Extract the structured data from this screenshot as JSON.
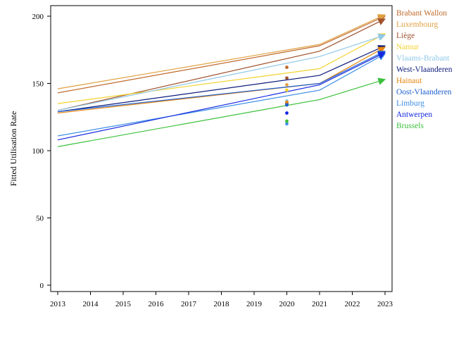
{
  "chart_data": {
    "type": "line",
    "title": "",
    "xlabel": "",
    "ylabel": "Fitted Utilisation Rate",
    "x_ticks": [
      "2013",
      "2014",
      "2015",
      "2016",
      "2017",
      "2018",
      "2019",
      "2020",
      "2021",
      "2022",
      "2023"
    ],
    "y_ticks": [
      "0",
      "50",
      "100",
      "150",
      "200"
    ],
    "xlim": [
      2013,
      2023
    ],
    "ylim": [
      0,
      200
    ],
    "grid": false,
    "legend_position": "right",
    "series": [
      {
        "name": "Brabant Wallon",
        "color": "#C06A2B",
        "points": [
          [
            2013,
            143
          ],
          [
            2021,
            178
          ],
          [
            2023,
            200
          ]
        ],
        "dot_2020": 162
      },
      {
        "name": "Luxembourg",
        "color": "#E0A040",
        "points": [
          [
            2013,
            146
          ],
          [
            2021,
            179
          ],
          [
            2023,
            201
          ]
        ],
        "dot_2020": 149
      },
      {
        "name": "Liège",
        "color": "#A0522D",
        "points": [
          [
            2013,
            130
          ],
          [
            2021,
            174
          ],
          [
            2023,
            198
          ]
        ],
        "dot_2020": 154
      },
      {
        "name": "Namur",
        "color": "#F2D22E",
        "points": [
          [
            2013,
            135
          ],
          [
            2021,
            161
          ],
          [
            2023,
            187
          ]
        ],
        "dot_2020": 145
      },
      {
        "name": "Vlaams-Brabant",
        "color": "#8FC8E8",
        "points": [
          [
            2013,
            130
          ],
          [
            2021,
            170
          ],
          [
            2023,
            186
          ]
        ],
        "dot_2020": 137
      },
      {
        "name": "West-Vlaanderen",
        "color": "#0B1A7A",
        "points": [
          [
            2013,
            129
          ],
          [
            2021,
            156
          ],
          [
            2023,
            178
          ]
        ],
        "dot_2020": 135
      },
      {
        "name": "Hainaut",
        "color": "#E6850E",
        "points": [
          [
            2013,
            128
          ],
          [
            2021,
            150
          ],
          [
            2023,
            177
          ]
        ],
        "dot_2020": 136
      },
      {
        "name": "Oost-Vlaanderen",
        "color": "#1F5FD0",
        "points": [
          [
            2013,
            129
          ],
          [
            2021,
            150
          ],
          [
            2023,
            174
          ]
        ],
        "dot_2020": 134
      },
      {
        "name": "Limburg",
        "color": "#3E8EE6",
        "points": [
          [
            2013,
            111
          ],
          [
            2021,
            145
          ],
          [
            2023,
            172
          ]
        ],
        "dot_2020": 120
      },
      {
        "name": "Antwerpen",
        "color": "#1428E0",
        "points": [
          [
            2013,
            108
          ],
          [
            2021,
            149
          ],
          [
            2023,
            173
          ]
        ],
        "dot_2020": 128
      },
      {
        "name": "Brussels",
        "color": "#3CC03C",
        "points": [
          [
            2013,
            103
          ],
          [
            2021,
            138
          ],
          [
            2023,
            153
          ]
        ],
        "dot_2020": 122
      }
    ]
  }
}
